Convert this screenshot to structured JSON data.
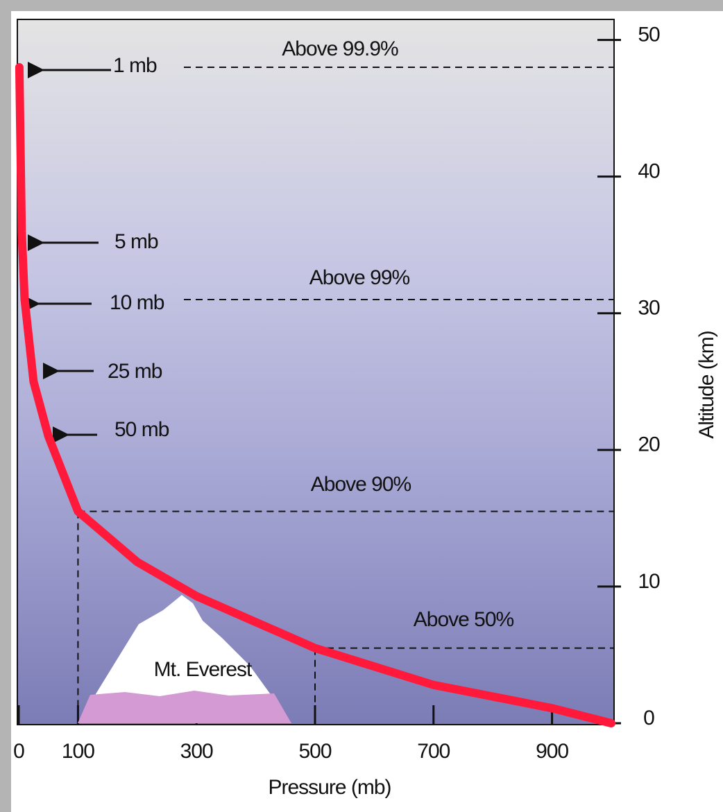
{
  "chart_data": {
    "type": "line",
    "x_label": "Pressure (mb)",
    "y_label": "Altitude (km)",
    "x": [
      1,
      5,
      10,
      25,
      50,
      100,
      200,
      300,
      500,
      700,
      900,
      1000
    ],
    "series": [
      {
        "color": "#ff1a3c",
        "values": [
          48,
          36,
          31,
          25,
          21,
          15.5,
          11.8,
          9.3,
          5.5,
          2.8,
          1.1,
          0
        ]
      }
    ],
    "xlim": [
      0,
      1000
    ],
    "xticks": [
      0,
      100,
      300,
      500,
      700,
      900
    ],
    "ylim": [
      0,
      51.5
    ],
    "yticks": [
      0,
      10,
      20,
      30,
      40,
      50
    ],
    "annotations": {
      "levels": [
        "1 mb",
        "5 mb",
        "10 mb",
        "25 mb",
        "50 mb"
      ],
      "regions": [
        "Above 99.9%",
        "Above 99%",
        "Above 90%",
        "Above 50%"
      ],
      "mountain": "Mt. Everest"
    }
  }
}
